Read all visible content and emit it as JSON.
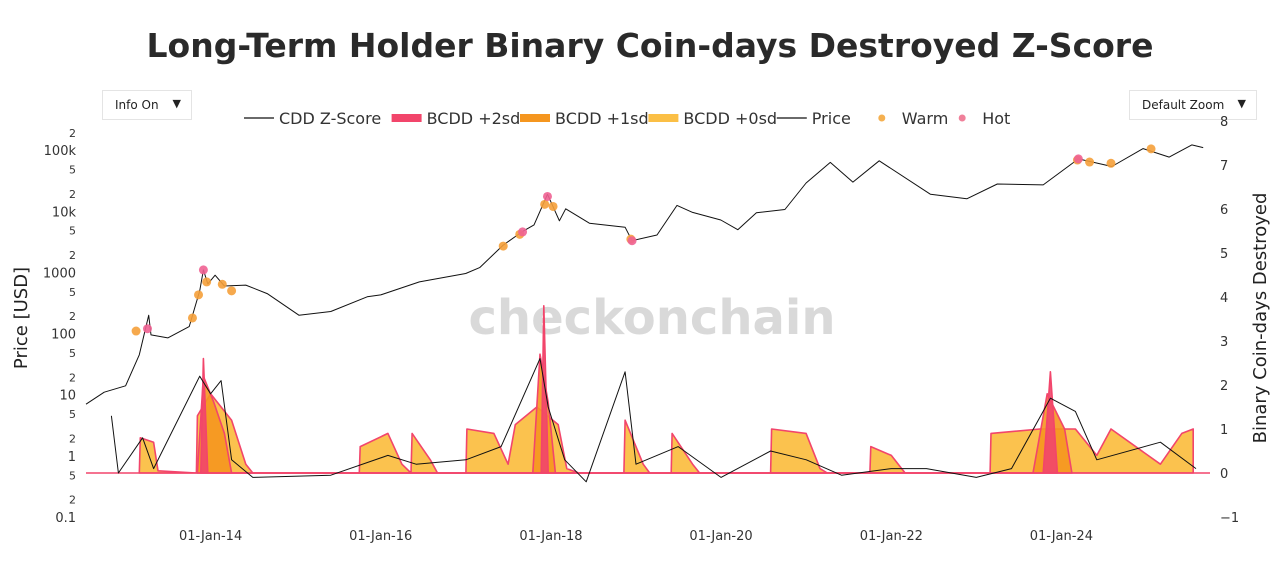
{
  "title": "Long-Term Holder Binary Coin-days Destroyed Z-Score",
  "controls": {
    "info_label": "Info On",
    "zoom_label": "Default Zoom"
  },
  "watermark": "checkonchain",
  "colors": {
    "bcdd_2sd": "#f2456b",
    "bcdd_1sd": "#f5961f",
    "bcdd_0sd": "#fbbf45",
    "line": "#111111",
    "warm": "#f5a623",
    "hot": "#f06292"
  },
  "legend": [
    {
      "label": "CDD Z-Score",
      "kind": "line",
      "color": "#111111"
    },
    {
      "label": "BCDD +2sd",
      "kind": "band",
      "color": "#f2456b"
    },
    {
      "label": "BCDD +1sd",
      "kind": "band",
      "color": "#f5961f"
    },
    {
      "label": "BCDD +0sd",
      "kind": "band",
      "color": "#fbbf45"
    },
    {
      "label": "Price",
      "kind": "line",
      "color": "#111111"
    },
    {
      "label": "Warm",
      "kind": "dot",
      "color": "#f5b050"
    },
    {
      "label": "Hot",
      "kind": "dot",
      "color": "#f0809a"
    }
  ],
  "chart_data": {
    "type": "line",
    "title": "Long-Term Holder Binary Coin-days Destroyed Z-Score",
    "x_ticks": [
      "01-Jan-14",
      "01-Jan-16",
      "01-Jan-18",
      "01-Jan-20",
      "01-Jan-22",
      "01-Jan-24"
    ],
    "x_range": [
      "2012-07-15",
      "2025-09-30"
    ],
    "y_left": {
      "label": "Price [USD]",
      "scale": "log",
      "range": [
        0.1,
        300000
      ],
      "ticks": [
        {
          "v": 0.1,
          "t": "0.1"
        },
        {
          "v": 0.2,
          "t": "2"
        },
        {
          "v": 0.5,
          "t": "5"
        },
        {
          "v": 1,
          "t": "1"
        },
        {
          "v": 2,
          "t": "2"
        },
        {
          "v": 5,
          "t": "5"
        },
        {
          "v": 10,
          "t": "10"
        },
        {
          "v": 20,
          "t": "2"
        },
        {
          "v": 50,
          "t": "5"
        },
        {
          "v": 100,
          "t": "100"
        },
        {
          "v": 200,
          "t": "2"
        },
        {
          "v": 500,
          "t": "5"
        },
        {
          "v": 1000,
          "t": "1000"
        },
        {
          "v": 2000,
          "t": "2"
        },
        {
          "v": 5000,
          "t": "5"
        },
        {
          "v": 10000,
          "t": "10k"
        },
        {
          "v": 20000,
          "t": "2"
        },
        {
          "v": 50000,
          "t": "5"
        },
        {
          "v": 100000,
          "t": "100k"
        },
        {
          "v": 200000,
          "t": "2"
        }
      ]
    },
    "y_right": {
      "label": "Binary Coin-days Destroyed",
      "range": [
        -1,
        8
      ],
      "ticks": [
        -1,
        0,
        1,
        2,
        3,
        4,
        5,
        6,
        7,
        8
      ]
    },
    "series": [
      {
        "name": "Price",
        "axis": "left",
        "points": [
          [
            "2012-07-15",
            7
          ],
          [
            "2012-10-01",
            11
          ],
          [
            "2013-01-01",
            14
          ],
          [
            "2013-03-01",
            45
          ],
          [
            "2013-04-10",
            200
          ],
          [
            "2013-04-20",
            95
          ],
          [
            "2013-07-01",
            85
          ],
          [
            "2013-10-01",
            130
          ],
          [
            "2013-11-15",
            500
          ],
          [
            "2013-12-01",
            1100
          ],
          [
            "2013-12-20",
            650
          ],
          [
            "2014-01-20",
            900
          ],
          [
            "2014-03-01",
            600
          ],
          [
            "2014-06-01",
            620
          ],
          [
            "2014-09-01",
            450
          ],
          [
            "2015-01-15",
            200
          ],
          [
            "2015-06-01",
            230
          ],
          [
            "2015-11-04",
            400
          ],
          [
            "2016-01-01",
            430
          ],
          [
            "2016-06-15",
            700
          ],
          [
            "2016-12-31",
            960
          ],
          [
            "2017-03-01",
            1200
          ],
          [
            "2017-06-10",
            2800
          ],
          [
            "2017-09-01",
            4700
          ],
          [
            "2017-10-20",
            6000
          ],
          [
            "2017-12-17",
            19000
          ],
          [
            "2018-02-06",
            7000
          ],
          [
            "2018-03-05",
            11000
          ],
          [
            "2018-06-15",
            6400
          ],
          [
            "2018-11-15",
            5500
          ],
          [
            "2018-12-15",
            3300
          ],
          [
            "2019-04-01",
            4100
          ],
          [
            "2019-06-26",
            12500
          ],
          [
            "2019-09-01",
            9600
          ],
          [
            "2019-12-31",
            7200
          ],
          [
            "2020-03-13",
            5000
          ],
          [
            "2020-06-01",
            9500
          ],
          [
            "2020-10-01",
            10700
          ],
          [
            "2020-12-31",
            29000
          ],
          [
            "2021-04-14",
            63000
          ],
          [
            "2021-07-20",
            30000
          ],
          [
            "2021-11-10",
            67000
          ],
          [
            "2022-06-18",
            19000
          ],
          [
            "2022-11-21",
            16000
          ],
          [
            "2023-04-01",
            28000
          ],
          [
            "2023-10-15",
            27000
          ],
          [
            "2024-03-14",
            72000
          ],
          [
            "2024-08-05",
            54000
          ],
          [
            "2024-12-17",
            106000
          ],
          [
            "2025-04-08",
            77000
          ],
          [
            "2025-07-14",
            122000
          ],
          [
            "2025-09-01",
            110000
          ]
        ]
      },
      {
        "name": "BCDD +0sd",
        "axis": "right",
        "points": [
          [
            "2013-03-01",
            0
          ],
          [
            "2013-03-05",
            0.8
          ],
          [
            "2013-05-01",
            0.7
          ],
          [
            "2013-05-20",
            0.05
          ],
          [
            "2013-11-01",
            0
          ],
          [
            "2013-11-05",
            1.3
          ],
          [
            "2014-01-01",
            1.8
          ],
          [
            "2014-04-01",
            1.2
          ],
          [
            "2014-06-01",
            0.2
          ],
          [
            "2014-07-01",
            0
          ],
          [
            "2015-10-01",
            0
          ],
          [
            "2015-10-05",
            0.6
          ],
          [
            "2016-02-01",
            0.9
          ],
          [
            "2016-04-01",
            0.2
          ],
          [
            "2016-05-10",
            0
          ],
          [
            "2016-05-15",
            0.9
          ],
          [
            "2016-08-01",
            0.3
          ],
          [
            "2016-09-01",
            0
          ],
          [
            "2017-01-01",
            0
          ],
          [
            "2017-01-05",
            1.0
          ],
          [
            "2017-05-01",
            0.9
          ],
          [
            "2017-07-01",
            0.2
          ],
          [
            "2017-08-01",
            1.1
          ],
          [
            "2017-11-01",
            1.5
          ],
          [
            "2018-02-01",
            1.1
          ],
          [
            "2018-03-10",
            0.1
          ],
          [
            "2018-05-01",
            0
          ],
          [
            "2018-11-10",
            0
          ],
          [
            "2018-11-15",
            1.2
          ],
          [
            "2019-02-01",
            0.2
          ],
          [
            "2019-03-01",
            0
          ],
          [
            "2019-06-01",
            0
          ],
          [
            "2019-06-05",
            0.9
          ],
          [
            "2019-09-01",
            0.2
          ],
          [
            "2019-10-01",
            0
          ],
          [
            "2020-08-01",
            0
          ],
          [
            "2020-08-05",
            1.0
          ],
          [
            "2020-12-31",
            0.9
          ],
          [
            "2021-03-01",
            0.1
          ],
          [
            "2021-04-01",
            0
          ],
          [
            "2021-10-01",
            0
          ],
          [
            "2021-10-05",
            0.6
          ],
          [
            "2022-01-01",
            0.4
          ],
          [
            "2022-03-01",
            0
          ],
          [
            "2023-03-01",
            0
          ],
          [
            "2023-03-05",
            0.9
          ],
          [
            "2023-10-01",
            1.0
          ],
          [
            "2024-03-01",
            1.0
          ],
          [
            "2024-06-01",
            0.4
          ],
          [
            "2024-08-01",
            1.0
          ],
          [
            "2025-03-01",
            0.2
          ],
          [
            "2025-06-01",
            0.9
          ],
          [
            "2025-07-20",
            1.0
          ]
        ]
      },
      {
        "name": "BCDD +1sd",
        "axis": "right",
        "points": [
          [
            "2013-11-05",
            0
          ],
          [
            "2013-12-01",
            2.2
          ],
          [
            "2014-01-15",
            1.6
          ],
          [
            "2014-03-01",
            0.9
          ],
          [
            "2014-04-01",
            0
          ],
          [
            "2017-10-15",
            0
          ],
          [
            "2017-11-15",
            2.7
          ],
          [
            "2017-12-20",
            1.6
          ],
          [
            "2018-01-20",
            0
          ],
          [
            "2023-09-01",
            0
          ],
          [
            "2023-11-01",
            1.8
          ],
          [
            "2024-01-15",
            1.0
          ],
          [
            "2024-02-15",
            0
          ]
        ]
      },
      {
        "name": "BCDD +2sd",
        "axis": "right",
        "points": [
          [
            "2013-11-20",
            0
          ],
          [
            "2013-12-01",
            2.6
          ],
          [
            "2013-12-20",
            0
          ],
          [
            "2017-11-20",
            0
          ],
          [
            "2017-12-01",
            3.8
          ],
          [
            "2017-12-20",
            0
          ],
          [
            "2023-10-15",
            0
          ],
          [
            "2023-11-15",
            2.3
          ],
          [
            "2023-12-15",
            0
          ]
        ]
      },
      {
        "name": "CDD Z-Score",
        "axis": "right",
        "points": [
          [
            "2012-11-01",
            1.3
          ],
          [
            "2012-12-01",
            0
          ],
          [
            "2013-03-15",
            0.8
          ],
          [
            "2013-05-01",
            0.1
          ],
          [
            "2013-11-15",
            2.2
          ],
          [
            "2014-01-01",
            1.8
          ],
          [
            "2014-02-15",
            2.1
          ],
          [
            "2014-04-01",
            0.3
          ],
          [
            "2014-07-01",
            -0.1
          ],
          [
            "2015-06-01",
            -0.05
          ],
          [
            "2016-02-01",
            0.4
          ],
          [
            "2016-06-01",
            0.2
          ],
          [
            "2017-01-01",
            0.3
          ],
          [
            "2017-06-01",
            0.6
          ],
          [
            "2017-11-15",
            2.6
          ],
          [
            "2017-12-20",
            1.5
          ],
          [
            "2018-03-01",
            0.3
          ],
          [
            "2018-06-01",
            -0.2
          ],
          [
            "2018-11-15",
            2.3
          ],
          [
            "2019-01-01",
            0.2
          ],
          [
            "2019-07-01",
            0.6
          ],
          [
            "2020-01-01",
            -0.1
          ],
          [
            "2020-08-01",
            0.5
          ],
          [
            "2021-01-01",
            0.3
          ],
          [
            "2021-06-01",
            -0.05
          ],
          [
            "2022-01-01",
            0.1
          ],
          [
            "2022-06-01",
            0.1
          ],
          [
            "2023-01-01",
            -0.1
          ],
          [
            "2023-06-01",
            0.1
          ],
          [
            "2023-11-15",
            1.7
          ],
          [
            "2024-03-01",
            1.4
          ],
          [
            "2024-06-01",
            0.3
          ],
          [
            "2025-03-01",
            0.7
          ],
          [
            "2025-08-01",
            0.1
          ]
        ]
      }
    ],
    "markers": {
      "warm": [
        [
          "2013-02-15",
          110
        ],
        [
          "2013-10-15",
          180
        ],
        [
          "2013-11-10",
          430
        ],
        [
          "2013-12-15",
          700
        ],
        [
          "2014-02-20",
          640
        ],
        [
          "2014-04-01",
          500
        ],
        [
          "2017-06-10",
          2700
        ],
        [
          "2017-08-20",
          4200
        ],
        [
          "2017-12-05",
          13000
        ],
        [
          "2018-01-10",
          12000
        ],
        [
          "2018-12-10",
          3500
        ],
        [
          "2024-03-10",
          69000
        ],
        [
          "2024-05-01",
          64000
        ],
        [
          "2024-08-01",
          61000
        ],
        [
          "2025-01-20",
          105000
        ]
      ],
      "hot": [
        [
          "2013-04-05",
          120
        ],
        [
          "2013-12-01",
          1100
        ],
        [
          "2017-09-01",
          4600
        ],
        [
          "2017-12-17",
          17500
        ],
        [
          "2018-12-15",
          3300
        ],
        [
          "2024-03-14",
          72000
        ]
      ]
    }
  }
}
